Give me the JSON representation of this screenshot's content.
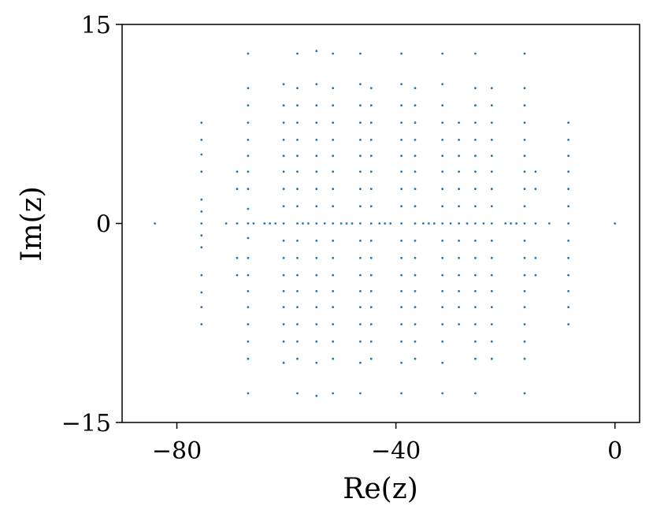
{
  "chart_data": {
    "type": "scatter",
    "title": "",
    "xlabel": "Re(z)",
    "ylabel": "Im(z)",
    "xlim": [
      -90,
      4.5
    ],
    "ylim": [
      -15,
      15
    ],
    "xticks": [
      {
        "value": -80,
        "label": "−80"
      },
      {
        "value": -40,
        "label": "−40"
      },
      {
        "value": 0,
        "label": "0"
      }
    ],
    "yticks": [
      {
        "value": -15,
        "label": "−15"
      },
      {
        "value": 0,
        "label": "0"
      },
      {
        "value": 15,
        "label": "15"
      }
    ],
    "grid": false,
    "legend": "none",
    "marker_color": "#1f77b4",
    "columns": [
      {
        "re": -84.0,
        "im": [
          0
        ]
      },
      {
        "re": -75.5,
        "im": [
          0,
          0.9,
          1.8,
          3.9,
          5.2,
          6.3,
          7.6,
          -0.9,
          -1.8,
          -3.9,
          -5.2,
          -6.3,
          -7.6
        ]
      },
      {
        "re": -67.0,
        "im": [
          0,
          1.1,
          2.6,
          3.9,
          5.1,
          6.3,
          7.6,
          8.9,
          10.2,
          12.8,
          -1.1,
          -2.6,
          -3.9,
          -5.1,
          -6.3,
          -7.6,
          -8.9,
          -10.2,
          -12.8
        ]
      },
      {
        "re": -69.0,
        "im": [
          0,
          2.6,
          3.9,
          -2.6,
          -3.9
        ]
      },
      {
        "re": -60.5,
        "im": [
          0,
          1.3,
          2.6,
          3.9,
          5.1,
          6.3,
          7.6,
          8.9,
          10.5,
          -1.3,
          -2.6,
          -3.9,
          -5.1,
          -6.3,
          -7.6,
          -8.9,
          -10.5
        ]
      },
      {
        "re": -58.0,
        "im": [
          0,
          1.3,
          2.6,
          3.9,
          5.1,
          6.3,
          7.6,
          8.9,
          10.2,
          12.8,
          -1.3,
          -2.6,
          -3.9,
          -5.1,
          -6.3,
          -7.6,
          -8.9,
          -10.2,
          -12.8
        ]
      },
      {
        "re": -54.5,
        "im": [
          0,
          1.3,
          2.6,
          3.9,
          5.1,
          6.3,
          7.6,
          8.9,
          10.5,
          13.0,
          -1.3,
          -2.6,
          -3.9,
          -5.1,
          -6.3,
          -7.6,
          -8.9,
          -10.5,
          -13.0
        ]
      },
      {
        "re": -51.5,
        "im": [
          0,
          1.3,
          2.6,
          3.9,
          5.1,
          6.3,
          7.6,
          8.9,
          10.2,
          12.8,
          -1.3,
          -2.6,
          -3.9,
          -5.1,
          -6.3,
          -7.6,
          -8.9,
          -10.2,
          -12.8
        ]
      },
      {
        "re": -46.5,
        "im": [
          0,
          1.3,
          2.6,
          3.9,
          5.1,
          6.3,
          7.6,
          8.9,
          10.5,
          12.8,
          -1.3,
          -2.6,
          -3.9,
          -5.1,
          -6.3,
          -7.6,
          -8.9,
          -10.5,
          -12.8
        ]
      },
      {
        "re": -44.5,
        "im": [
          0,
          1.3,
          2.6,
          3.9,
          5.1,
          6.3,
          7.6,
          8.9,
          10.2,
          -1.3,
          -2.6,
          -3.9,
          -5.1,
          -6.3,
          -7.6,
          -8.9,
          -10.2
        ]
      },
      {
        "re": -39.0,
        "im": [
          0,
          1.3,
          2.6,
          3.9,
          5.1,
          6.3,
          7.6,
          8.9,
          10.5,
          12.8,
          -1.3,
          -2.6,
          -3.9,
          -5.1,
          -6.3,
          -7.6,
          -8.9,
          -10.5,
          -12.8
        ]
      },
      {
        "re": -36.5,
        "im": [
          0,
          1.3,
          2.6,
          3.9,
          5.1,
          6.3,
          7.6,
          8.9,
          10.2,
          -1.3,
          -2.6,
          -3.9,
          -5.1,
          -6.3,
          -7.6,
          -8.9,
          -10.2
        ]
      },
      {
        "re": -31.5,
        "im": [
          0,
          1.3,
          2.6,
          3.9,
          5.1,
          6.3,
          7.6,
          8.9,
          10.5,
          12.8,
          -1.3,
          -2.6,
          -3.9,
          -5.1,
          -6.3,
          -7.6,
          -8.9,
          -10.5,
          -12.8
        ]
      },
      {
        "re": -28.5,
        "im": [
          0,
          1.3,
          2.6,
          3.9,
          5.1,
          6.3,
          7.6,
          -1.3,
          -2.6,
          -3.9,
          -5.1,
          -6.3,
          -7.6
        ]
      },
      {
        "re": -25.5,
        "im": [
          0,
          1.3,
          2.6,
          3.9,
          5.1,
          6.3,
          7.6,
          8.9,
          10.2,
          12.8,
          -1.3,
          -2.6,
          -3.9,
          -5.1,
          -6.3,
          -7.6,
          -8.9,
          -10.2,
          -12.8
        ]
      },
      {
        "re": -22.5,
        "im": [
          0,
          1.3,
          2.6,
          3.9,
          5.1,
          6.3,
          7.6,
          8.9,
          10.2,
          -1.3,
          -2.6,
          -3.9,
          -5.1,
          -6.3,
          -7.6,
          -8.9,
          -10.2
        ]
      },
      {
        "re": -16.5,
        "im": [
          0,
          1.3,
          2.6,
          3.9,
          5.1,
          6.3,
          7.6,
          8.9,
          10.2,
          12.8,
          -1.3,
          -2.6,
          -3.9,
          -5.1,
          -6.3,
          -7.6,
          -8.9,
          -10.2,
          -12.8
        ]
      },
      {
        "re": -14.5,
        "im": [
          0,
          2.6,
          3.9,
          -2.6,
          -3.9
        ]
      },
      {
        "re": -8.5,
        "im": [
          0,
          1.3,
          2.6,
          3.9,
          5.1,
          6.3,
          7.6,
          -1.3,
          -2.6,
          -3.9,
          -5.1,
          -6.3,
          -7.6
        ]
      },
      {
        "re": 0.0,
        "im": [
          0
        ]
      }
    ],
    "real_axis_points": [
      -71,
      -66,
      -64,
      -63,
      -62,
      -57,
      -56,
      -53,
      -50,
      -49,
      -48,
      -43,
      -42,
      -41,
      -35,
      -34,
      -33,
      -30,
      -27,
      -24,
      -20,
      -19,
      -18,
      -12
    ]
  }
}
